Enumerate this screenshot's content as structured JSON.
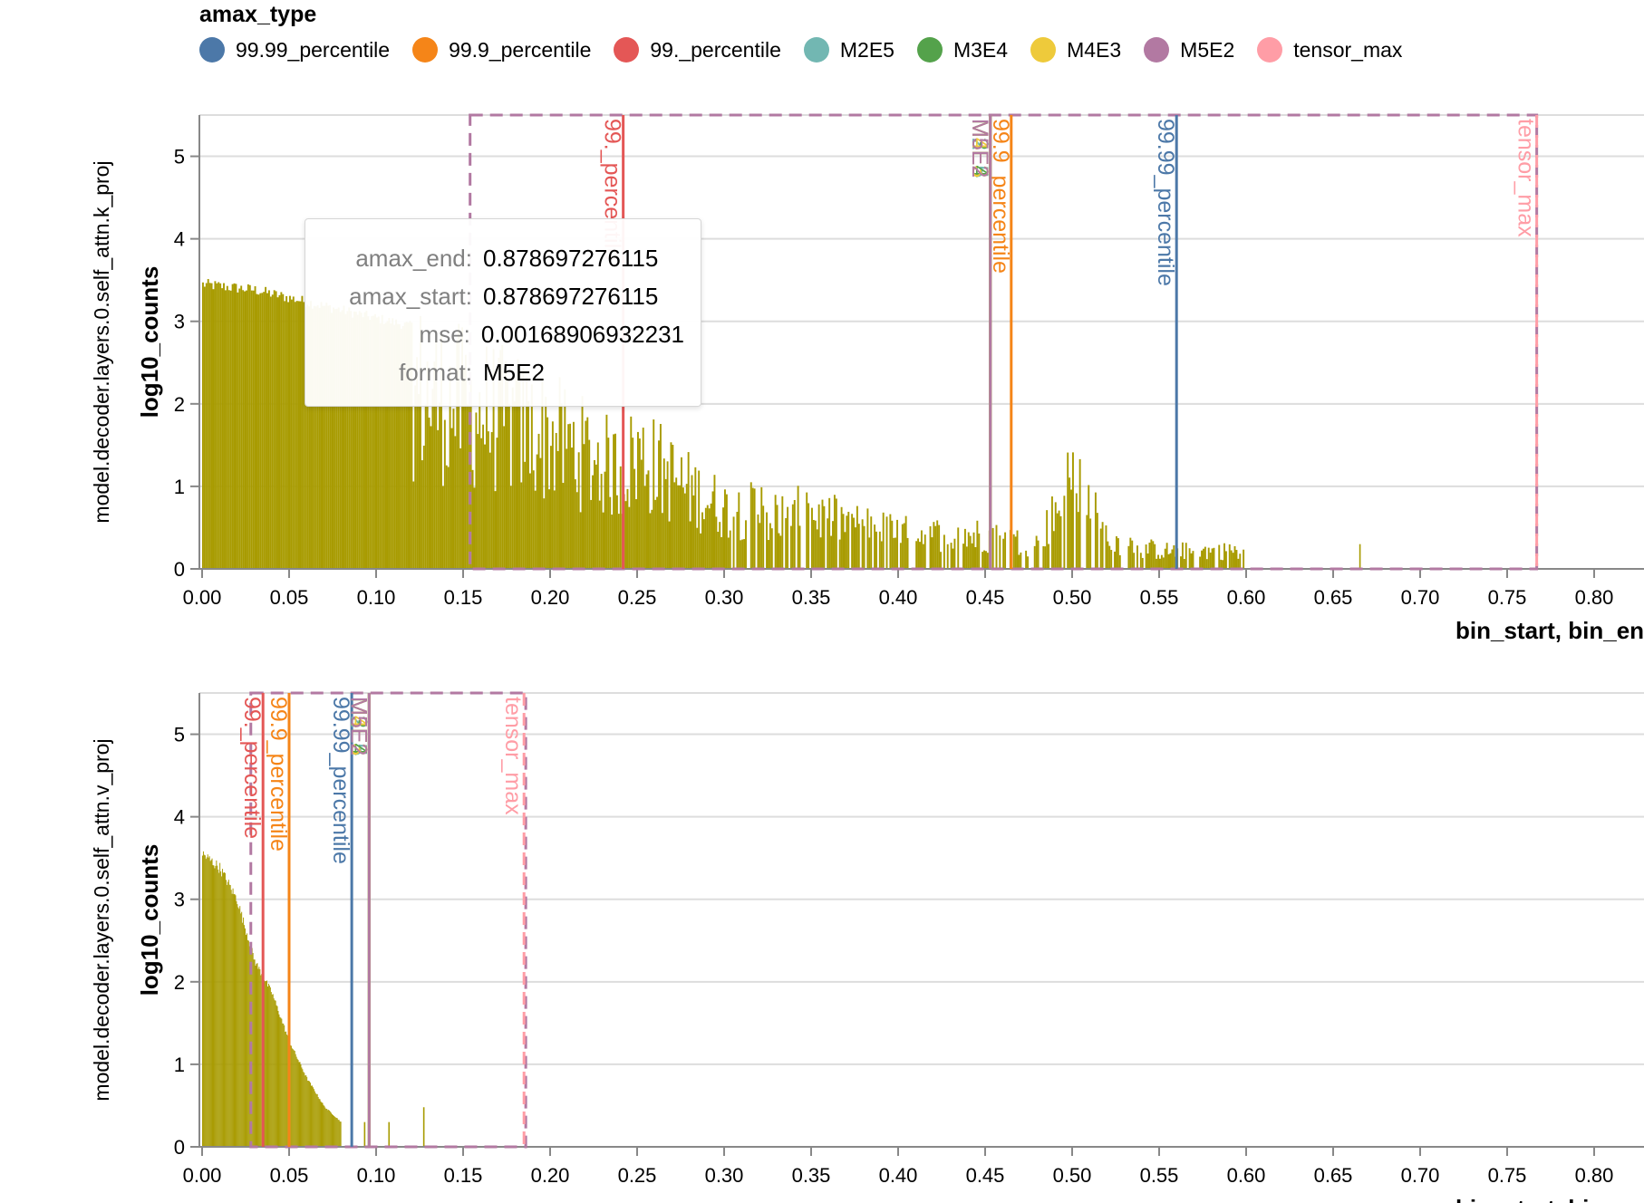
{
  "legend": {
    "title": "amax_type",
    "items": [
      {
        "label": "99.99_percentile",
        "color": "#4c78a8"
      },
      {
        "label": "99.9_percentile",
        "color": "#f58518"
      },
      {
        "label": "99._percentile",
        "color": "#e45756"
      },
      {
        "label": "M2E5",
        "color": "#72b7b2"
      },
      {
        "label": "M3E4",
        "color": "#54a24b"
      },
      {
        "label": "M4E3",
        "color": "#eeca3b"
      },
      {
        "label": "M5E2",
        "color": "#b279a2"
      },
      {
        "label": "tensor_max",
        "color": "#ff9da6"
      }
    ]
  },
  "tooltip": {
    "rows": [
      {
        "key": "amax_end:",
        "value": "0.878697276115"
      },
      {
        "key": "amax_start:",
        "value": "0.878697276115"
      },
      {
        "key": "mse:",
        "value": "0.00168906932231"
      },
      {
        "key": "format:",
        "value": "M5E2"
      }
    ]
  },
  "chart_data": [
    {
      "type": "bar",
      "row_label": "model.decoder.layers.0.self_attn.k_proj",
      "xlabel": "bin_start, bin_en",
      "ylabel": "log10_counts",
      "bar_color": "#a89b00",
      "xlim": [
        0,
        0.83
      ],
      "ylim": [
        0,
        5.5
      ],
      "x_ticks": [
        "0.00",
        "0.05",
        "0.10",
        "0.15",
        "0.20",
        "0.25",
        "0.30",
        "0.35",
        "0.40",
        "0.45",
        "0.50",
        "0.55",
        "0.60",
        "0.65",
        "0.70",
        "0.75",
        "0.80"
      ],
      "y_ticks": [
        "0",
        "1",
        "2",
        "3",
        "4",
        "5"
      ],
      "grid": true,
      "histogram_profile": {
        "bin_width": 0.001,
        "envelope": [
          [
            0.0,
            3.52
          ],
          [
            0.03,
            3.45
          ],
          [
            0.08,
            3.2
          ],
          [
            0.12,
            3.0
          ],
          [
            0.16,
            2.6
          ],
          [
            0.2,
            2.2
          ],
          [
            0.24,
            1.6
          ],
          [
            0.25,
            1.9
          ],
          [
            0.28,
            1.3
          ],
          [
            0.3,
            1.0
          ],
          [
            0.35,
            0.9
          ],
          [
            0.4,
            0.6
          ],
          [
            0.45,
            0.55
          ],
          [
            0.48,
            0.4
          ],
          [
            0.5,
            1.55
          ],
          [
            0.52,
            0.5
          ],
          [
            0.55,
            0.3
          ],
          [
            0.6,
            0.3
          ]
        ],
        "isolated_spikes": [
          [
            0.665,
            0.3
          ]
        ]
      },
      "amax_lines": [
        {
          "amax_type": "99._percentile",
          "x": 0.242
        },
        {
          "amax_type": "99.9_percentile",
          "x": 0.465
        },
        {
          "amax_type": "99.99_percentile",
          "x": 0.56
        },
        {
          "amax_type": "M2E5",
          "x": 0.453
        },
        {
          "amax_type": "M3E4",
          "x": 0.453
        },
        {
          "amax_type": "M4E3",
          "x": 0.453
        },
        {
          "amax_type": "M5E2",
          "x": 0.453
        },
        {
          "amax_type": "tensor_max",
          "x": 0.767
        }
      ],
      "highlight_range": {
        "amax_type": "M5E2",
        "start": 0.154,
        "end": 0.767
      }
    },
    {
      "type": "bar",
      "row_label": "model.decoder.layers.0.self_attn.v_proj",
      "xlabel": "bin_start, bin_en",
      "ylabel": "log10_counts",
      "bar_color": "#a89b00",
      "xlim": [
        0,
        0.83
      ],
      "ylim": [
        0,
        5.5
      ],
      "x_ticks": [
        "0.00",
        "0.05",
        "0.10",
        "0.15",
        "0.20",
        "0.25",
        "0.30",
        "0.35",
        "0.40",
        "0.45",
        "0.50",
        "0.55",
        "0.60",
        "0.65",
        "0.70",
        "0.75",
        "0.80"
      ],
      "y_ticks": [
        "0",
        "1",
        "2",
        "3",
        "4",
        "5"
      ],
      "grid": true,
      "histogram_profile": {
        "bin_width": 0.0005,
        "envelope": [
          [
            0.0,
            3.62
          ],
          [
            0.01,
            3.45
          ],
          [
            0.02,
            3.05
          ],
          [
            0.03,
            2.3
          ],
          [
            0.04,
            1.9
          ],
          [
            0.05,
            1.3
          ],
          [
            0.06,
            0.85
          ],
          [
            0.07,
            0.5
          ],
          [
            0.08,
            0.3
          ]
        ],
        "isolated_spikes": [
          [
            0.093,
            0.3
          ],
          [
            0.107,
            0.3
          ],
          [
            0.127,
            0.48
          ]
        ]
      },
      "amax_lines": [
        {
          "amax_type": "99._percentile",
          "x": 0.035
        },
        {
          "amax_type": "99.9_percentile",
          "x": 0.05
        },
        {
          "amax_type": "99.99_percentile",
          "x": 0.086
        },
        {
          "amax_type": "M2E5",
          "x": 0.096
        },
        {
          "amax_type": "M3E4",
          "x": 0.096
        },
        {
          "amax_type": "M4E3",
          "x": 0.096
        },
        {
          "amax_type": "M5E2",
          "x": 0.096
        },
        {
          "amax_type": "tensor_max",
          "x": 0.185
        }
      ],
      "highlight_range": {
        "amax_type": "M5E2",
        "start": 0.028,
        "end": 0.186
      }
    }
  ]
}
